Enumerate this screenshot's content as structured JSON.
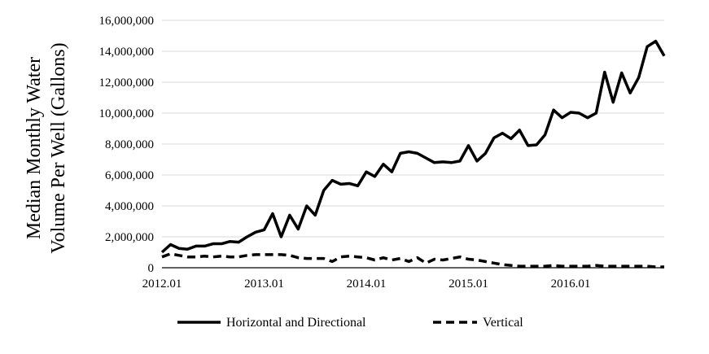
{
  "chart_data": {
    "type": "line",
    "title": "",
    "ylabel_lines": [
      "Median Monthly Water",
      "Volume Per Well (Gallons)"
    ],
    "xlabel": "",
    "ylim": [
      0,
      16000000
    ],
    "yticks": [
      0,
      2000000,
      4000000,
      6000000,
      8000000,
      10000000,
      12000000,
      14000000,
      16000000
    ],
    "ytick_labels": [
      "0",
      "2,000,000",
      "4,000,000",
      "6,000,000",
      "8,000,000",
      "10,000,000",
      "12,000,000",
      "14,000,000",
      "16,000,000"
    ],
    "xtick_labels": [
      "2012.01",
      "2013.01",
      "2014.01",
      "2015.01",
      "2016.01"
    ],
    "legend_position": "bottom",
    "grid": "horizontal",
    "x": [
      "2012.01",
      "2012.02",
      "2012.03",
      "2012.04",
      "2012.05",
      "2012.06",
      "2012.07",
      "2012.08",
      "2012.09",
      "2012.10",
      "2012.11",
      "2012.12",
      "2013.01",
      "2013.02",
      "2013.03",
      "2013.04",
      "2013.05",
      "2013.06",
      "2013.07",
      "2013.08",
      "2013.09",
      "2013.10",
      "2013.11",
      "2013.12",
      "2014.01",
      "2014.02",
      "2014.03",
      "2014.04",
      "2014.05",
      "2014.06",
      "2014.07",
      "2014.08",
      "2014.09",
      "2014.10",
      "2014.11",
      "2014.12",
      "2015.01",
      "2015.02",
      "2015.03",
      "2015.04",
      "2015.05",
      "2015.06",
      "2015.07",
      "2015.08",
      "2015.09",
      "2015.10",
      "2015.11",
      "2015.12",
      "2016.01",
      "2016.02",
      "2016.03",
      "2016.04",
      "2016.05",
      "2016.06",
      "2016.07",
      "2016.08",
      "2016.09",
      "2016.10",
      "2016.11",
      "2016.12"
    ],
    "series": [
      {
        "name": "Horizontal and Directional",
        "style": "solid",
        "color": "#000000",
        "values": [
          1000000,
          1500000,
          1250000,
          1200000,
          1400000,
          1400000,
          1550000,
          1550000,
          1700000,
          1650000,
          2000000,
          2300000,
          2450000,
          3500000,
          2000000,
          3400000,
          2500000,
          4000000,
          3400000,
          5000000,
          5650000,
          5400000,
          5450000,
          5300000,
          6200000,
          5900000,
          6700000,
          6200000,
          7400000,
          7500000,
          7400000,
          7100000,
          6800000,
          6850000,
          6800000,
          6900000,
          7900000,
          6900000,
          7400000,
          8400000,
          8700000,
          8350000,
          8900000,
          7900000,
          7950000,
          8600000,
          10200000,
          9700000,
          10050000,
          10000000,
          9700000,
          10000000,
          12650000,
          10700000,
          12600000,
          11300000,
          12300000,
          14300000,
          14650000,
          13700000
        ]
      },
      {
        "name": "Vertical",
        "style": "dashed",
        "color": "#000000",
        "values": [
          700000,
          900000,
          800000,
          700000,
          700000,
          750000,
          700000,
          750000,
          700000,
          700000,
          800000,
          850000,
          850000,
          850000,
          850000,
          800000,
          650000,
          600000,
          600000,
          600000,
          400000,
          700000,
          750000,
          700000,
          650000,
          500000,
          650000,
          500000,
          600000,
          400000,
          650000,
          300000,
          550000,
          500000,
          600000,
          700000,
          550000,
          500000,
          400000,
          300000,
          200000,
          150000,
          100000,
          100000,
          100000,
          100000,
          150000,
          100000,
          100000,
          100000,
          100000,
          150000,
          100000,
          100000,
          100000,
          100000,
          100000,
          100000,
          50000,
          50000
        ]
      }
    ]
  }
}
